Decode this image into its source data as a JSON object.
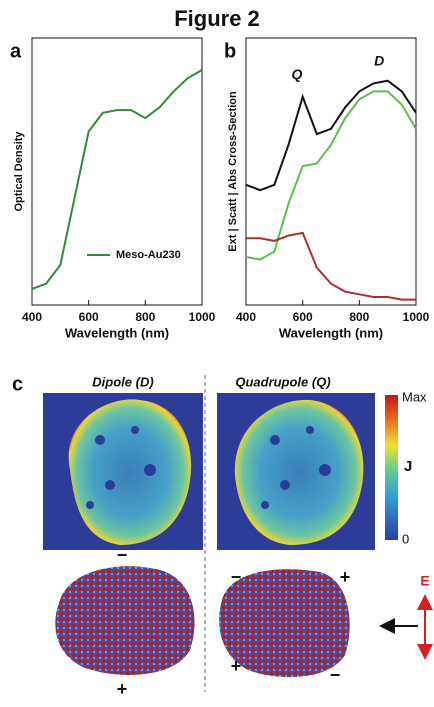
{
  "title": "Figure 2",
  "chart_data": [
    {
      "type": "line",
      "panel": "a",
      "x_label": "Wavelength (nm)",
      "y_label": "Optical Density",
      "x": [
        400,
        450,
        500,
        550,
        600,
        650,
        700,
        750,
        800,
        850,
        900,
        950,
        1000
      ],
      "xlim": [
        400,
        1000
      ],
      "xticks": [
        400,
        600,
        800,
        1000
      ],
      "ylim": [
        0,
        1
      ],
      "series": [
        {
          "name": "Meso-Au230",
          "color": "#2e8b3a",
          "values": [
            0.06,
            0.08,
            0.15,
            0.4,
            0.65,
            0.72,
            0.73,
            0.73,
            0.7,
            0.74,
            0.8,
            0.85,
            0.88
          ]
        }
      ]
    },
    {
      "type": "line",
      "panel": "b",
      "x_label": "Wavelength (nm)",
      "y_label": "Ext | Scatt | Abs Cross-Section",
      "x": [
        400,
        450,
        500,
        550,
        600,
        650,
        700,
        750,
        800,
        850,
        900,
        950,
        1000
      ],
      "xlim": [
        400,
        1000
      ],
      "xticks": [
        400,
        600,
        800,
        1000
      ],
      "ylim": [
        0,
        1
      ],
      "annotations": [
        "Q",
        "D"
      ],
      "series": [
        {
          "color": "#111111",
          "values": [
            0.45,
            0.43,
            0.45,
            0.6,
            0.78,
            0.64,
            0.66,
            0.74,
            0.8,
            0.83,
            0.84,
            0.8,
            0.72
          ]
        },
        {
          "color": "#5cbf4a",
          "values": [
            0.18,
            0.17,
            0.2,
            0.38,
            0.52,
            0.53,
            0.6,
            0.7,
            0.77,
            0.8,
            0.8,
            0.75,
            0.66
          ]
        },
        {
          "color": "#a8322a",
          "values": [
            0.25,
            0.25,
            0.24,
            0.26,
            0.27,
            0.14,
            0.08,
            0.05,
            0.04,
            0.03,
            0.03,
            0.02,
            0.02
          ]
        }
      ]
    }
  ],
  "panel_c": {
    "label": "c",
    "left_title": "Dipole (D)",
    "right_title": "Quadrupole (Q)",
    "colorbar": {
      "max": "Max",
      "name": "J",
      "min": "0"
    },
    "left_signs": [
      "−",
      "+"
    ],
    "right_signs": [
      "−",
      "+",
      "+",
      "−"
    ],
    "field": "E"
  }
}
